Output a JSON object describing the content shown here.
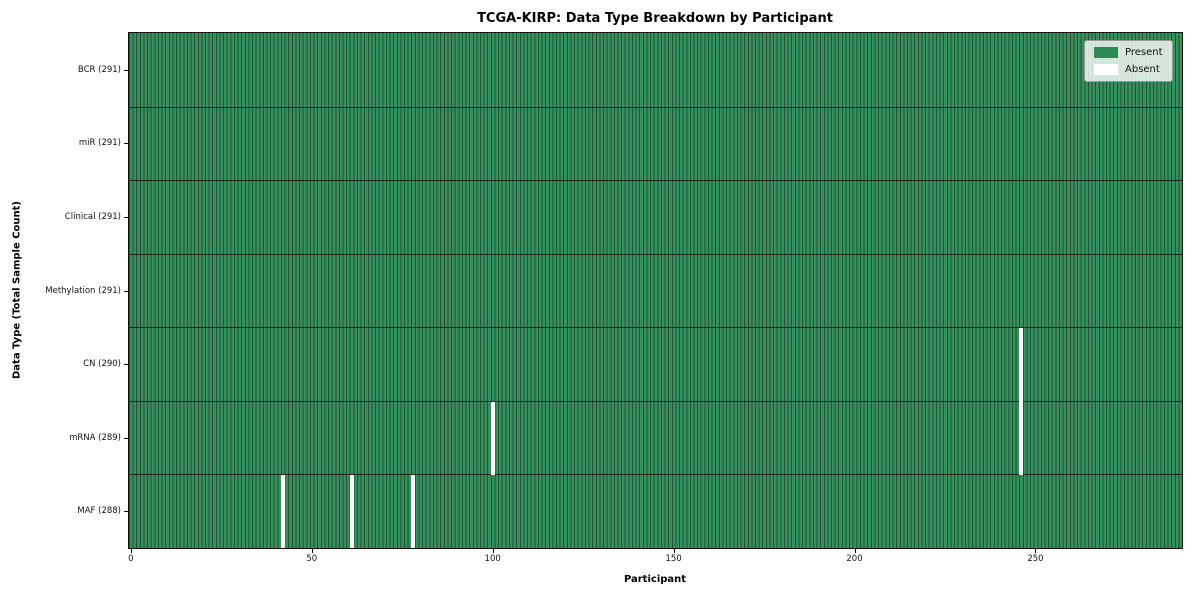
{
  "chart_data": {
    "type": "heatmap",
    "title": "TCGA-KIRP: Data Type Breakdown by Participant",
    "xlabel": "Participant",
    "ylabel": "Data Type (Total Sample Count)",
    "x_ticks": [
      0,
      50,
      100,
      150,
      200,
      250
    ],
    "xlim": [
      -0.5,
      290.5
    ],
    "n_participants": 291,
    "grid": false,
    "rows": [
      {
        "label": "BCR (291)",
        "data_type": "BCR",
        "present_count": 291,
        "absent_participants": []
      },
      {
        "label": "miR (291)",
        "data_type": "miR",
        "present_count": 291,
        "absent_participants": []
      },
      {
        "label": "Clinical (291)",
        "data_type": "Clinical",
        "present_count": 291,
        "absent_participants": []
      },
      {
        "label": "Methylation (291)",
        "data_type": "Methylation",
        "present_count": 291,
        "absent_participants": []
      },
      {
        "label": "CN (290)",
        "data_type": "CN",
        "present_count": 290,
        "absent_participants": [
          246
        ]
      },
      {
        "label": "mRNA (289)",
        "data_type": "mRNA",
        "present_count": 289,
        "absent_participants": [
          100,
          246
        ]
      },
      {
        "label": "MAF (288)",
        "data_type": "MAF",
        "present_count": 288,
        "absent_participants": [
          42,
          61,
          78
        ]
      }
    ],
    "legend": {
      "position": "upper right",
      "items": [
        {
          "label": "Present",
          "color": "#2e8b57"
        },
        {
          "label": "Absent",
          "color": "#ffffff"
        }
      ]
    },
    "colors": {
      "present": "#35925d",
      "bar_edge": "#24503a",
      "absent": "#ffffff",
      "row_divider": "#1c2a21",
      "axis": "#000000"
    }
  }
}
